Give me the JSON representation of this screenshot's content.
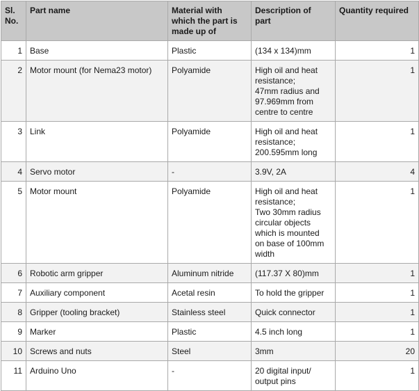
{
  "table": {
    "headers": {
      "sl_no": [
        "Sl.",
        "No."
      ],
      "part_name": "Part name",
      "material": [
        "Material with",
        "which the part is",
        "made up of"
      ],
      "description": [
        "Description of",
        "part"
      ],
      "quantity": "Quantity required"
    },
    "rows": [
      {
        "sl": "1",
        "part": "Base",
        "material": "Plastic",
        "description": [
          "(134 x 134)mm"
        ],
        "qty": "1"
      },
      {
        "sl": "2",
        "part": "Motor mount (for Nema23 motor)",
        "material": "Polyamide",
        "description": [
          "High oil and heat",
          "resistance;",
          "47mm radius and",
          "97.969mm from",
          "centre to centre"
        ],
        "qty": "1"
      },
      {
        "sl": "3",
        "part": "Link",
        "material": "Polyamide",
        "description": [
          "High oil and heat",
          "resistance;",
          "200.595mm long"
        ],
        "qty": "1"
      },
      {
        "sl": "4",
        "part": "Servo motor",
        "material": "-",
        "description": [
          "3.9V, 2A"
        ],
        "qty": "4"
      },
      {
        "sl": "5",
        "part": "Motor mount",
        "material": "Polyamide",
        "description": [
          "High oil and heat",
          "resistance;",
          "Two 30mm radius",
          "circular objects",
          "which is mounted",
          "on base of 100mm",
          "width"
        ],
        "qty": "1"
      },
      {
        "sl": "6",
        "part": "Robotic arm gripper",
        "material": "Aluminum nitride",
        "description": [
          "(117.37 X 80)mm"
        ],
        "qty": "1"
      },
      {
        "sl": "7",
        "part": "Auxiliary component",
        "material": "Acetal resin",
        "description": [
          "To hold the gripper"
        ],
        "qty": "1"
      },
      {
        "sl": "8",
        "part": "Gripper (tooling bracket)",
        "material": "Stainless steel",
        "description": [
          "Quick connector"
        ],
        "qty": "1"
      },
      {
        "sl": "9",
        "part": "Marker",
        "material": "Plastic",
        "description": [
          "4.5 inch long"
        ],
        "qty": "1"
      },
      {
        "sl": "10",
        "part": "Screws and nuts",
        "material": "Steel",
        "description": [
          "3mm"
        ],
        "qty": "20"
      },
      {
        "sl": "11",
        "part": "Arduino Uno",
        "material": "-",
        "description": [
          "20 digital input/",
          "output pins"
        ],
        "qty": "1"
      }
    ]
  }
}
